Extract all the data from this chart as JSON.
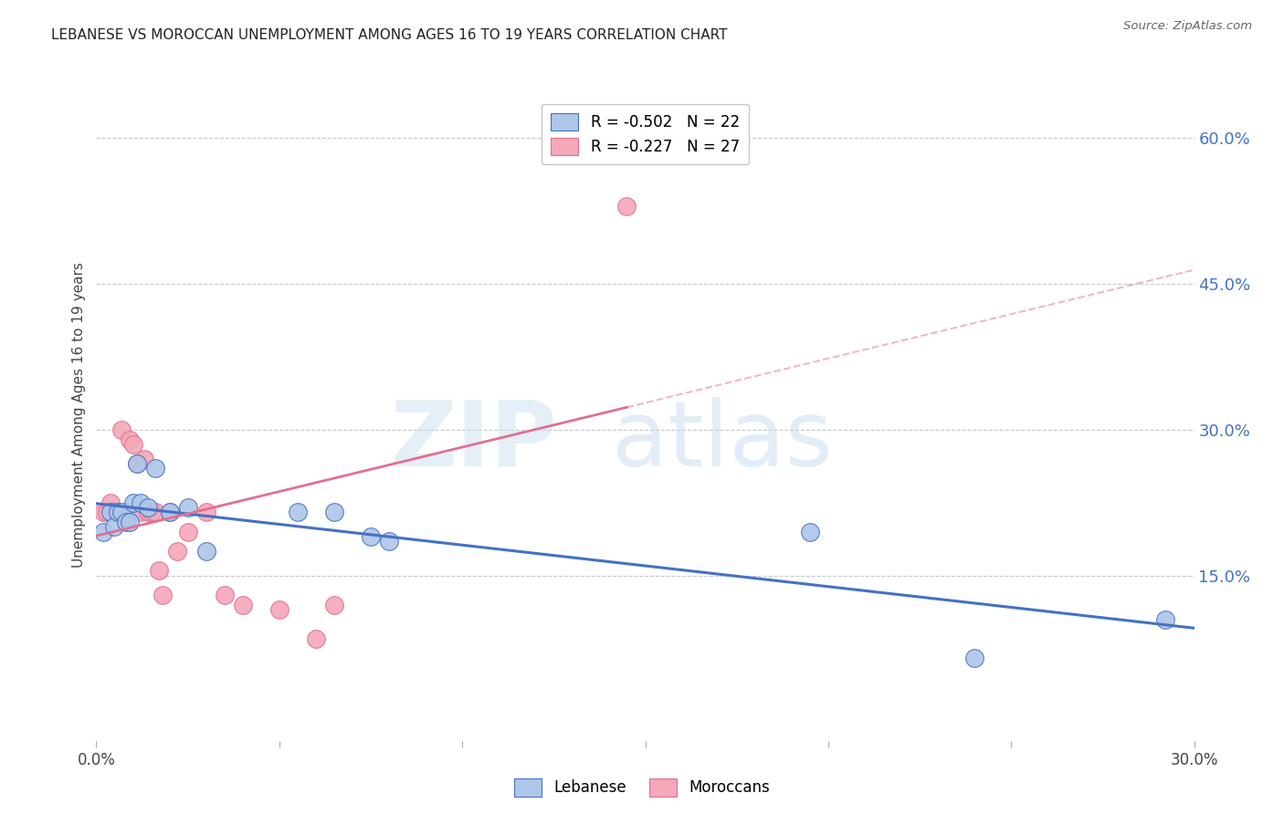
{
  "title": "LEBANESE VS MOROCCAN UNEMPLOYMENT AMONG AGES 16 TO 19 YEARS CORRELATION CHART",
  "source": "Source: ZipAtlas.com",
  "ylabel": "Unemployment Among Ages 16 to 19 years",
  "xlim": [
    0.0,
    0.3
  ],
  "ylim": [
    -0.02,
    0.65
  ],
  "xticks": [
    0.0,
    0.05,
    0.1,
    0.15,
    0.2,
    0.25,
    0.3
  ],
  "xtick_labels": [
    "0.0%",
    "",
    "",
    "",
    "",
    "",
    "30.0%"
  ],
  "yticks_right": [
    0.15,
    0.3,
    0.45,
    0.6
  ],
  "ytick_right_labels": [
    "15.0%",
    "30.0%",
    "45.0%",
    "60.0%"
  ],
  "legend_top_entries": [
    {
      "label": "R = -0.502   N = 22"
    },
    {
      "label": "R = -0.227   N = 27"
    }
  ],
  "lebanese_color": "#aec6e8",
  "moroccan_color": "#f4a7b9",
  "trend_lebanese_color": "#4472c4",
  "trend_moroccan_color": "#e07090",
  "lebanese_x": [
    0.002,
    0.004,
    0.005,
    0.006,
    0.007,
    0.008,
    0.009,
    0.01,
    0.011,
    0.012,
    0.014,
    0.016,
    0.02,
    0.025,
    0.03,
    0.055,
    0.065,
    0.075,
    0.08,
    0.195,
    0.24,
    0.292
  ],
  "lebanese_y": [
    0.195,
    0.215,
    0.2,
    0.215,
    0.215,
    0.205,
    0.205,
    0.225,
    0.265,
    0.225,
    0.22,
    0.26,
    0.215,
    0.22,
    0.175,
    0.215,
    0.215,
    0.19,
    0.185,
    0.195,
    0.065,
    0.105
  ],
  "moroccan_x": [
    0.002,
    0.003,
    0.004,
    0.005,
    0.006,
    0.007,
    0.008,
    0.009,
    0.01,
    0.011,
    0.012,
    0.013,
    0.014,
    0.015,
    0.016,
    0.017,
    0.018,
    0.02,
    0.022,
    0.025,
    0.03,
    0.035,
    0.04,
    0.05,
    0.06,
    0.065,
    0.145
  ],
  "moroccan_y": [
    0.215,
    0.215,
    0.225,
    0.215,
    0.215,
    0.3,
    0.215,
    0.29,
    0.285,
    0.265,
    0.215,
    0.27,
    0.215,
    0.215,
    0.215,
    0.155,
    0.13,
    0.215,
    0.175,
    0.195,
    0.215,
    0.13,
    0.12,
    0.115,
    0.085,
    0.12,
    0.53
  ],
  "background_color": "#ffffff",
  "grid_color": "#c8c8c8",
  "title_color": "#222222",
  "right_label_color": "#4472c4"
}
